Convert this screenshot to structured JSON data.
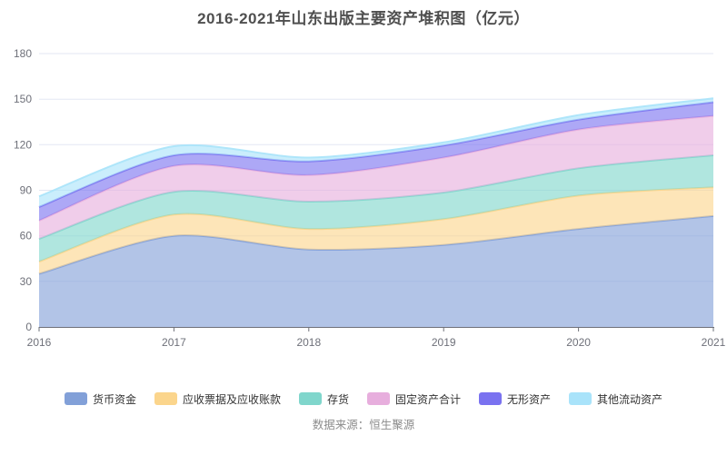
{
  "title": "2016-2021年山东出版主要资产堆积图（亿元）",
  "source": "数据来源：恒生聚源",
  "colors": {
    "title": "#4f4f4f",
    "grid": "#e3e7f3",
    "axis": "#6e7079",
    "axis_label": "#6e7079",
    "legend_label": "#333333",
    "source": "#8c8c8c",
    "background": "#ffffff"
  },
  "chart_data": {
    "type": "area",
    "stacked": true,
    "smooth": true,
    "title": "2016-2021年山东出版主要资产堆积图（亿元）",
    "xlabel": "",
    "ylabel": "",
    "x": [
      "2016",
      "2017",
      "2018",
      "2019",
      "2020",
      "2021"
    ],
    "ylim": [
      0,
      180
    ],
    "yticks": [
      0,
      30,
      60,
      90,
      120,
      150,
      180
    ],
    "grid": true,
    "legend_position": "bottom",
    "fill_opacity": 0.62,
    "series": [
      {
        "name": "货币资金",
        "color": "#82a0d8",
        "values": [
          35,
          60,
          51,
          54,
          64.5,
          73
        ]
      },
      {
        "name": "应收票据及应收账款",
        "color": "#fbd58c",
        "values": [
          8,
          14,
          13.5,
          17,
          22,
          19
        ]
      },
      {
        "name": "存货",
        "color": "#80d6cc",
        "values": [
          15,
          15,
          18,
          17.5,
          18,
          21
        ]
      },
      {
        "name": "固定资产合计",
        "color": "#e7aedd",
        "values": [
          12,
          17,
          17.5,
          23,
          25.5,
          26
        ]
      },
      {
        "name": "无形资产",
        "color": "#7a72f0",
        "values": [
          9,
          7,
          9,
          8,
          6.5,
          9
        ]
      },
      {
        "name": "其他流动资产",
        "color": "#a9e3fa",
        "values": [
          7,
          6,
          2.5,
          2,
          3,
          2.5
        ]
      }
    ],
    "cumulative_totals": [
      86,
      119,
      111.5,
      121.5,
      139.5,
      150.5
    ]
  }
}
